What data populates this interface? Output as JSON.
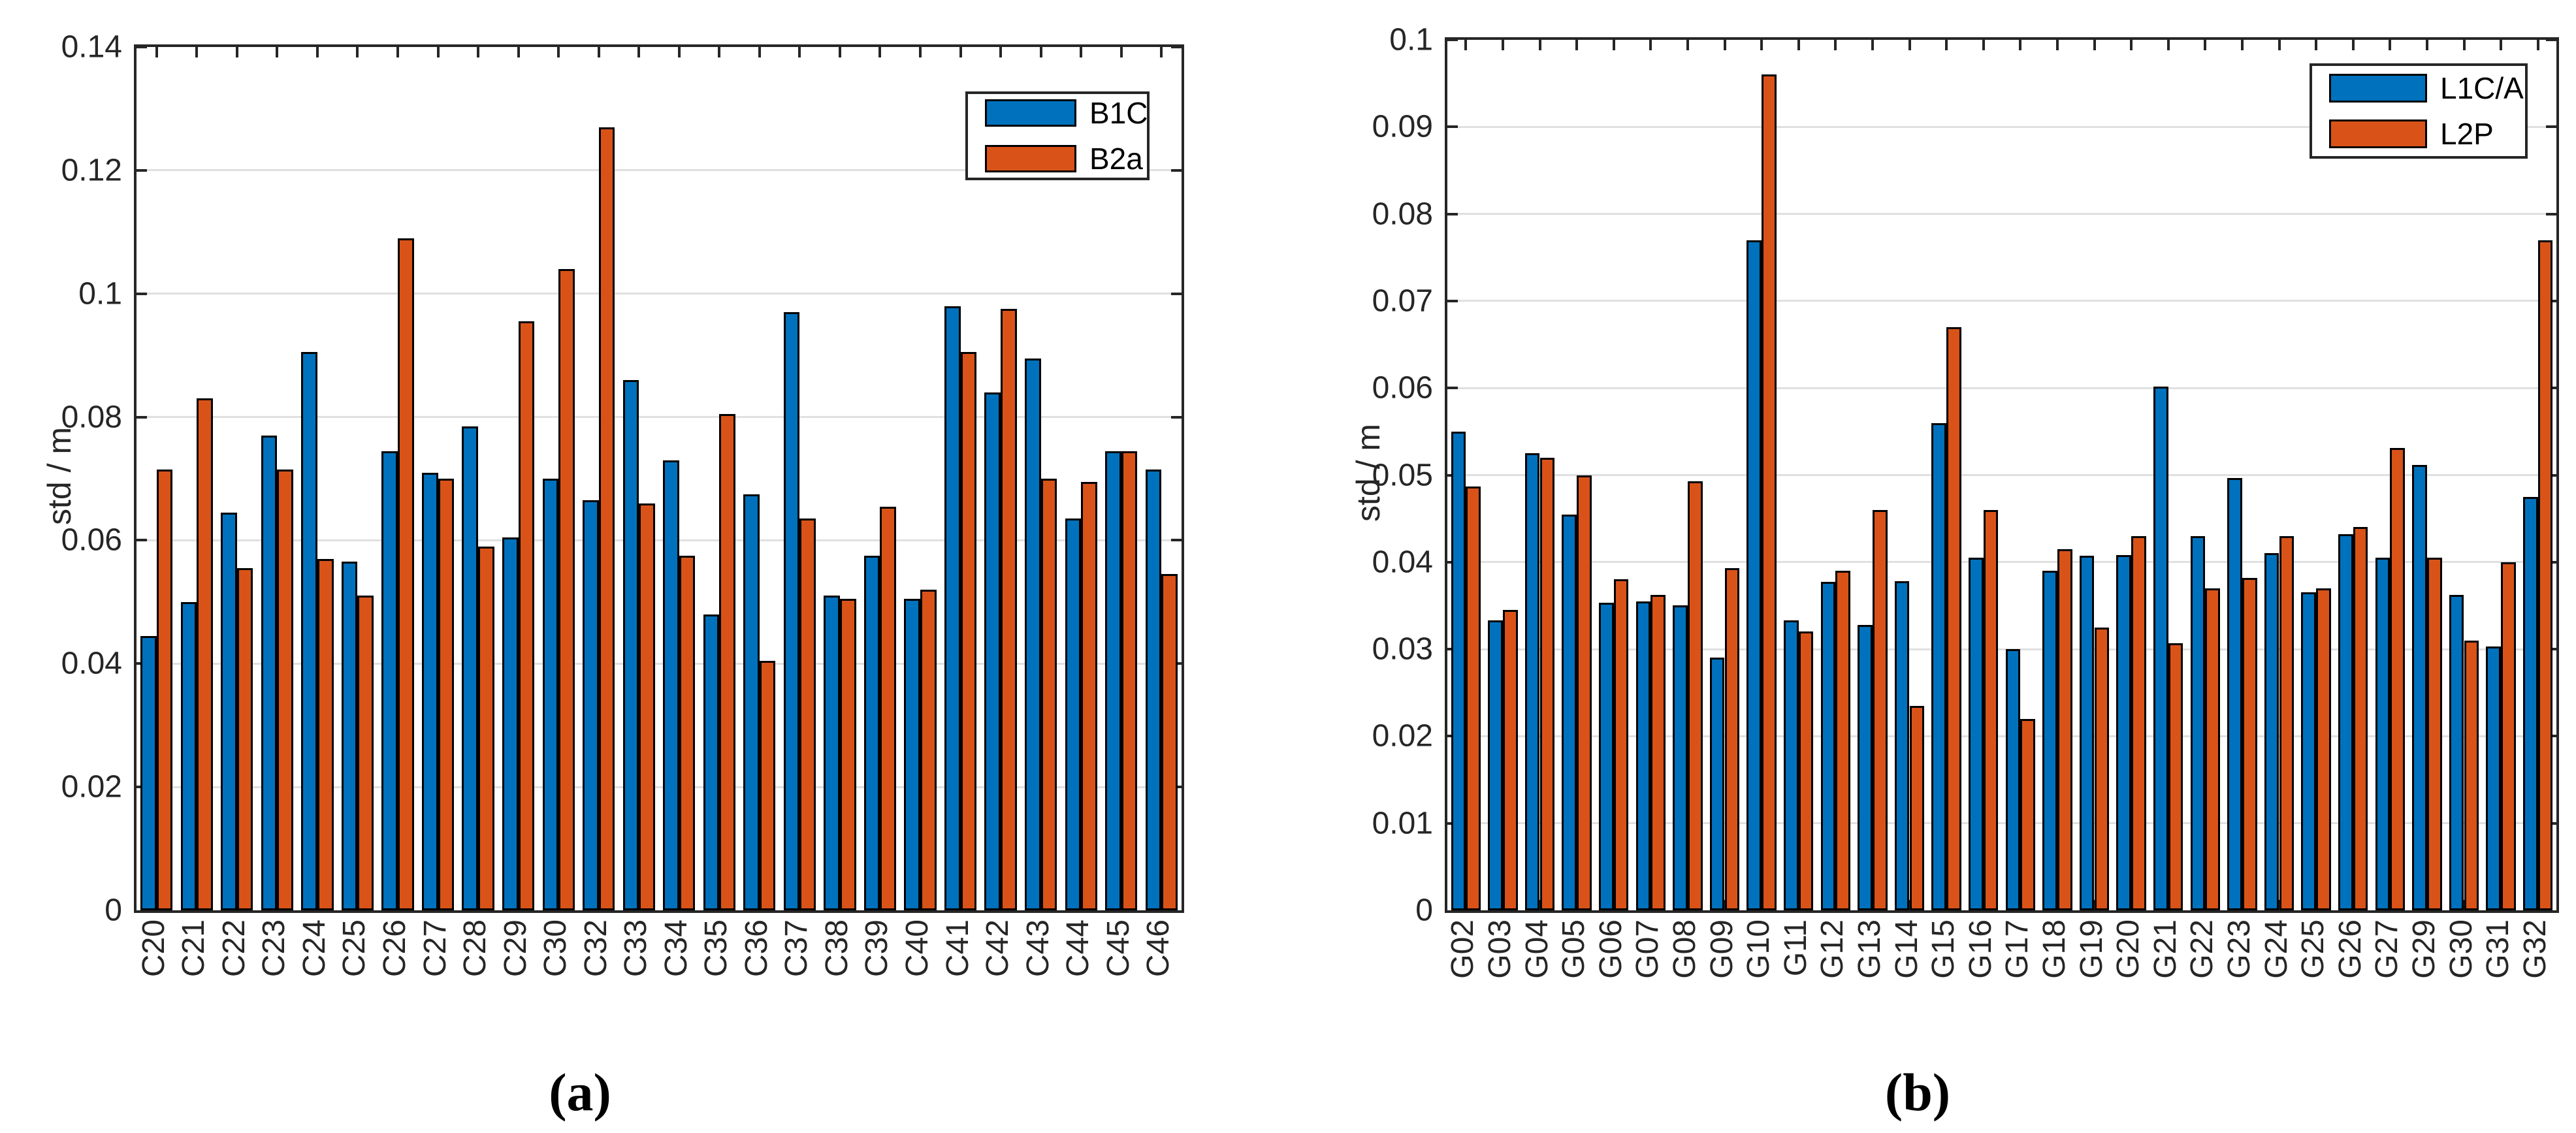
{
  "figure": {
    "background": "#ffffff",
    "axis_color": "#262626",
    "grid_color": "#e0e0e0",
    "bar_edge_color": "#000000"
  },
  "captions": {
    "a": "(a)",
    "b": "(b)"
  },
  "chart_data": [
    {
      "id": "a",
      "type": "bar",
      "title": "",
      "xlabel": "",
      "ylabel": "std / m",
      "ylim": [
        0,
        0.14
      ],
      "ytick_labels": [
        "0",
        "0.02",
        "0.04",
        "0.06",
        "0.08",
        "0.1",
        "0.12",
        "0.14"
      ],
      "grid": true,
      "legend": {
        "position": "top-right",
        "entries": [
          "B1C",
          "B2a"
        ]
      },
      "colors": [
        "#0072BD",
        "#D95319"
      ],
      "categories": [
        "C20",
        "C21",
        "C22",
        "C23",
        "C24",
        "C25",
        "C26",
        "C27",
        "C28",
        "C29",
        "C30",
        "C32",
        "C33",
        "C34",
        "C35",
        "C36",
        "C37",
        "C38",
        "C39",
        "C40",
        "C41",
        "C42",
        "C43",
        "C44",
        "C45",
        "C46"
      ],
      "series": [
        {
          "name": "B1C",
          "values": [
            0.0445,
            0.05,
            0.0645,
            0.077,
            0.0905,
            0.0565,
            0.0745,
            0.071,
            0.0785,
            0.0605,
            0.07,
            0.0665,
            0.086,
            0.073,
            0.048,
            0.0675,
            0.097,
            0.051,
            0.0575,
            0.0505,
            0.098,
            0.084,
            0.0895,
            0.0635,
            0.0745,
            0.0715
          ]
        },
        {
          "name": "B2a",
          "values": [
            0.0715,
            0.083,
            0.0555,
            0.0715,
            0.057,
            0.051,
            0.109,
            0.07,
            0.059,
            0.0955,
            0.104,
            0.127,
            0.066,
            0.0575,
            0.0805,
            0.0405,
            0.0635,
            0.0505,
            0.0655,
            0.052,
            0.0905,
            0.0975,
            0.07,
            0.0695,
            0.0745,
            0.0545
          ]
        }
      ],
      "caption": "(a)"
    },
    {
      "id": "b",
      "type": "bar",
      "title": "",
      "xlabel": "",
      "ylabel": "std / m",
      "ylim": [
        0,
        0.1
      ],
      "ytick_labels": [
        "0",
        "0.01",
        "0.02",
        "0.03",
        "0.04",
        "0.05",
        "0.06",
        "0.07",
        "0.08",
        "0.09",
        "0.1"
      ],
      "grid": true,
      "legend": {
        "position": "top-right",
        "entries": [
          "L1C/A",
          "L2P"
        ]
      },
      "colors": [
        "#0072BD",
        "#D95319"
      ],
      "categories": [
        "G02",
        "G03",
        "G04",
        "G05",
        "G06",
        "G07",
        "G08",
        "G09",
        "G10",
        "G11",
        "G12",
        "G13",
        "G14",
        "G15",
        "G16",
        "G17",
        "G18",
        "G19",
        "G20",
        "G21",
        "G22",
        "G23",
        "G24",
        "G25",
        "G26",
        "G27",
        "G29",
        "G30",
        "G31",
        "G32"
      ],
      "series": [
        {
          "name": "L1C/A",
          "values": [
            0.055,
            0.0333,
            0.0525,
            0.0455,
            0.0353,
            0.0355,
            0.035,
            0.029,
            0.077,
            0.0333,
            0.0377,
            0.0328,
            0.0378,
            0.056,
            0.0405,
            0.03,
            0.039,
            0.0407,
            0.0408,
            0.0602,
            0.043,
            0.0497,
            0.041,
            0.0365,
            0.0432,
            0.0405,
            0.0512,
            0.0362,
            0.0303,
            0.0475
          ]
        },
        {
          "name": "L2P",
          "values": [
            0.0487,
            0.0345,
            0.052,
            0.05,
            0.038,
            0.0362,
            0.0493,
            0.0393,
            0.096,
            0.032,
            0.039,
            0.046,
            0.0235,
            0.067,
            0.046,
            0.022,
            0.0415,
            0.0325,
            0.043,
            0.0307,
            0.037,
            0.0382,
            0.043,
            0.037,
            0.044,
            0.0531,
            0.0405,
            0.031,
            0.04,
            0.077
          ]
        }
      ],
      "caption": "(b)"
    }
  ]
}
